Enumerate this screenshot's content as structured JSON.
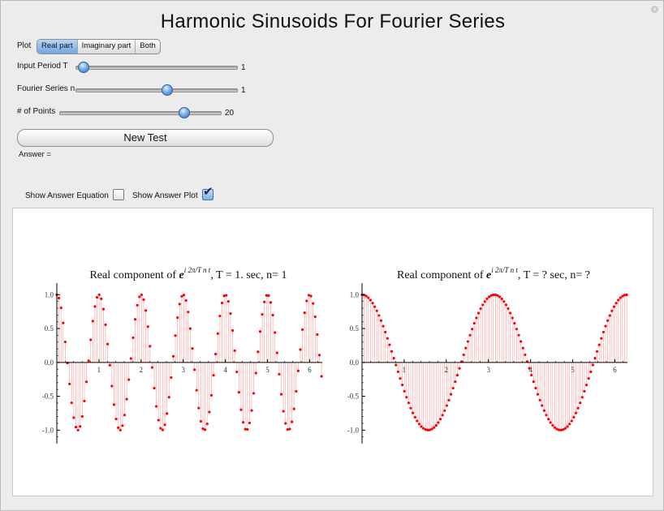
{
  "title": "Harmonic Sinusoids For Fourier Series",
  "plot_control": {
    "label": "Plot",
    "options": [
      "Real part",
      "Imaginary part",
      "Both"
    ],
    "selected": "Real part"
  },
  "sliders": [
    {
      "label": "Input Period T",
      "value_text": "1",
      "fraction": 0.05
    },
    {
      "label": "Fourier Series n",
      "value_text": "1",
      "fraction": 0.57
    },
    {
      "label": "# of Points",
      "value_text": "20",
      "fraction": 0.78
    }
  ],
  "new_test_label": "New Test",
  "answer_label": "Answer =",
  "checkboxes": {
    "answer_equation": {
      "label": "Show Answer Equation",
      "checked": false
    },
    "answer_plot": {
      "label": "Show Answer Plot",
      "checked": true
    }
  },
  "colors": {
    "series": "#ff0000",
    "stem": "#ffb0b0",
    "accent": "#6fa6e2"
  },
  "chart_data": [
    {
      "type": "scatter",
      "style": "stem",
      "title_prefix": "Real component of",
      "title_suffix": ", T = 1. sec, n= 1",
      "function": "cos(2*pi*n*t/T)",
      "T": 1,
      "n": 1,
      "x_range": [
        0,
        6.283
      ],
      "points": 126,
      "xlim": [
        0,
        6.3
      ],
      "ylim": [
        -1.2,
        1.1
      ],
      "xticks": [
        "1",
        "2",
        "3",
        "4",
        "5",
        "6"
      ],
      "yticks": [
        "1.0",
        "0.5",
        "0.0",
        "-0.5",
        "-1.0"
      ]
    },
    {
      "type": "scatter",
      "style": "stem",
      "title_prefix": "Real component of",
      "title_suffix": ", T = ? sec, n= ?",
      "function": "cos(2*t)",
      "x_range": [
        0,
        6.283
      ],
      "points": 126,
      "xlim": [
        0,
        6.3
      ],
      "ylim": [
        -1.2,
        1.1
      ],
      "xticks": [
        "1",
        "2",
        "3",
        "4",
        "5",
        "6"
      ],
      "yticks": [
        "1.0",
        "0.5",
        "0.0",
        "-0.5",
        "-1.0"
      ]
    }
  ]
}
